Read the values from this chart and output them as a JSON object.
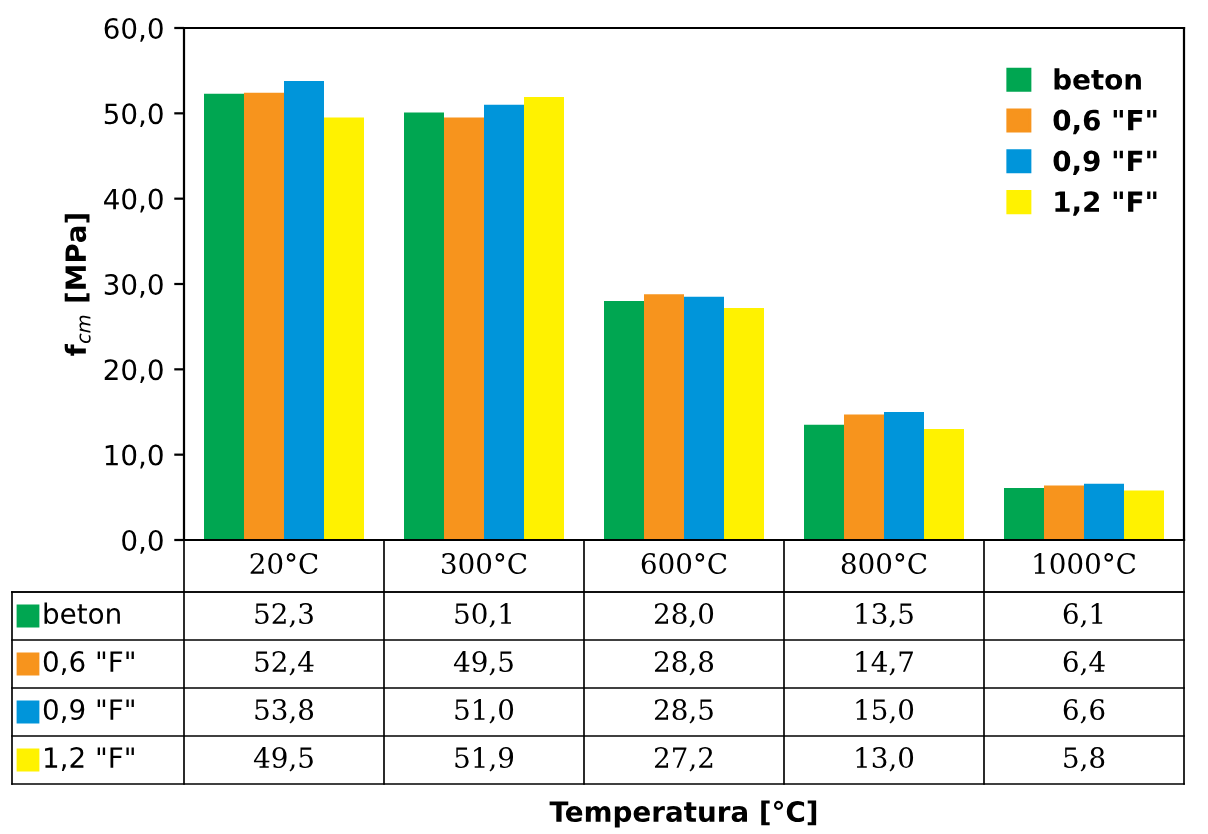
{
  "chart_data": {
    "type": "bar",
    "annotations": [
      "Temperatura [°C]"
    ],
    "ylabel": "f$_{cm}$ [MPa]",
    "categories": [
      "20°C",
      "300°C",
      "600°C",
      "800°C",
      "1000°C"
    ],
    "series": [
      {
        "name": "beton",
        "color": "#00a651",
        "values": [
          52.3,
          50.1,
          28.0,
          13.5,
          6.1
        ],
        "value_labels": [
          "52,3",
          "50,1",
          "28,0",
          "13,5",
          "6,1"
        ]
      },
      {
        "name": "0,6 \"F\"",
        "color": "#f7941d",
        "values": [
          52.4,
          49.5,
          28.8,
          14.7,
          6.4
        ],
        "value_labels": [
          "52,4",
          "49,5",
          "28,8",
          "14,7",
          "6,4"
        ]
      },
      {
        "name": "0,9 \"F\"",
        "color": "#0095da",
        "values": [
          53.8,
          51.0,
          28.5,
          15.0,
          6.6
        ],
        "value_labels": [
          "53,8",
          "51,0",
          "28,5",
          "15,0",
          "6,6"
        ]
      },
      {
        "name": "1,2 \"F\"",
        "color": "#fff200",
        "values": [
          49.5,
          51.9,
          27.2,
          13.0,
          5.8
        ],
        "value_labels": [
          "49,5",
          "51,9",
          "27,2",
          "13,0",
          "5,8"
        ]
      }
    ],
    "ylim": [
      0,
      60
    ],
    "yticks": [
      {
        "value": 0,
        "label": "0,0"
      },
      {
        "value": 10,
        "label": "10,0"
      },
      {
        "value": 20,
        "label": "20,0"
      },
      {
        "value": 30,
        "label": "30,0"
      },
      {
        "value": 40,
        "label": "40,0"
      },
      {
        "value": 50,
        "label": "50,0"
      },
      {
        "value": 60,
        "label": "60,0"
      }
    ],
    "legend": "top right",
    "grid": false
  }
}
